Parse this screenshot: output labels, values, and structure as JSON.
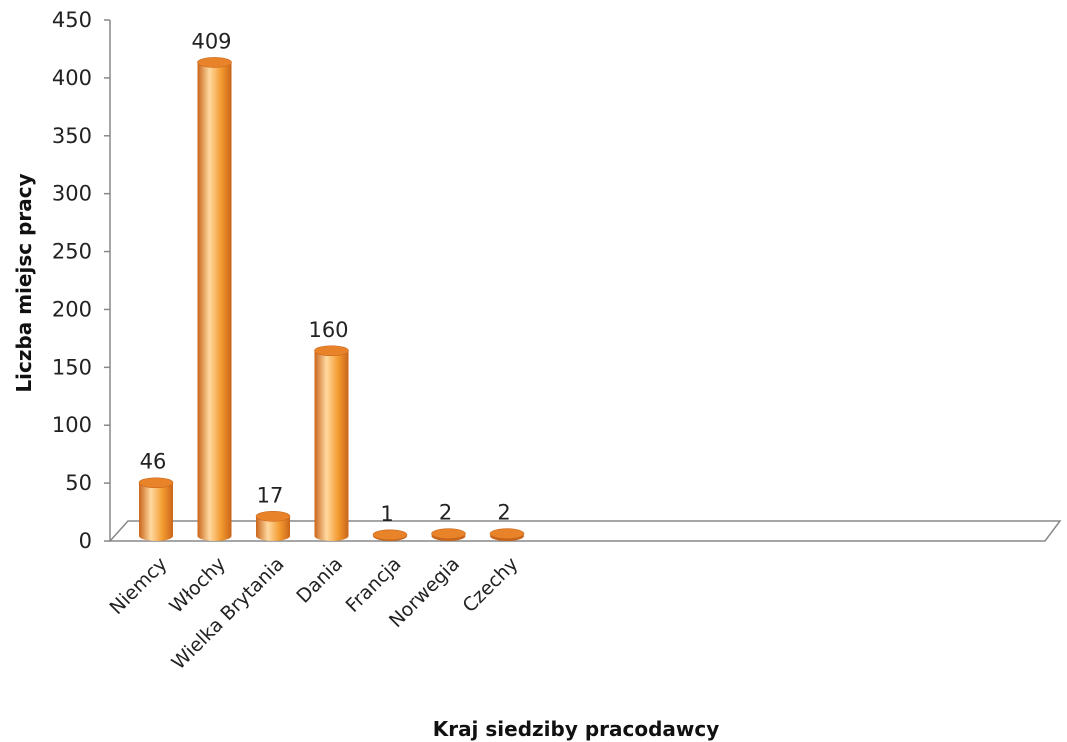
{
  "chart_data": {
    "type": "bar",
    "categories": [
      "Niemcy",
      "Włochy",
      "Wielka Brytania",
      "Dania",
      "Francja",
      "Norwegia",
      "Czechy"
    ],
    "values": [
      46,
      409,
      17,
      160,
      1,
      2,
      2
    ],
    "data_labels": [
      "46",
      "409",
      "17",
      "160",
      "1",
      "2",
      "2"
    ],
    "title": "",
    "xlabel": "Kraj siedziby pracodawcy",
    "ylabel": "Liczba miejsc pracy",
    "ylim": [
      0,
      450
    ],
    "yticks": [
      0,
      50,
      100,
      150,
      200,
      250,
      300,
      350,
      400,
      450
    ],
    "grid": false,
    "legend": "none",
    "style": "3d-cylinder",
    "colors": {
      "bar_main": "#f39a2f",
      "bar_dark": "#c9651a",
      "bar_light": "#ffd9a0",
      "bar_top": "#e8832a",
      "axis": "#888888"
    }
  }
}
